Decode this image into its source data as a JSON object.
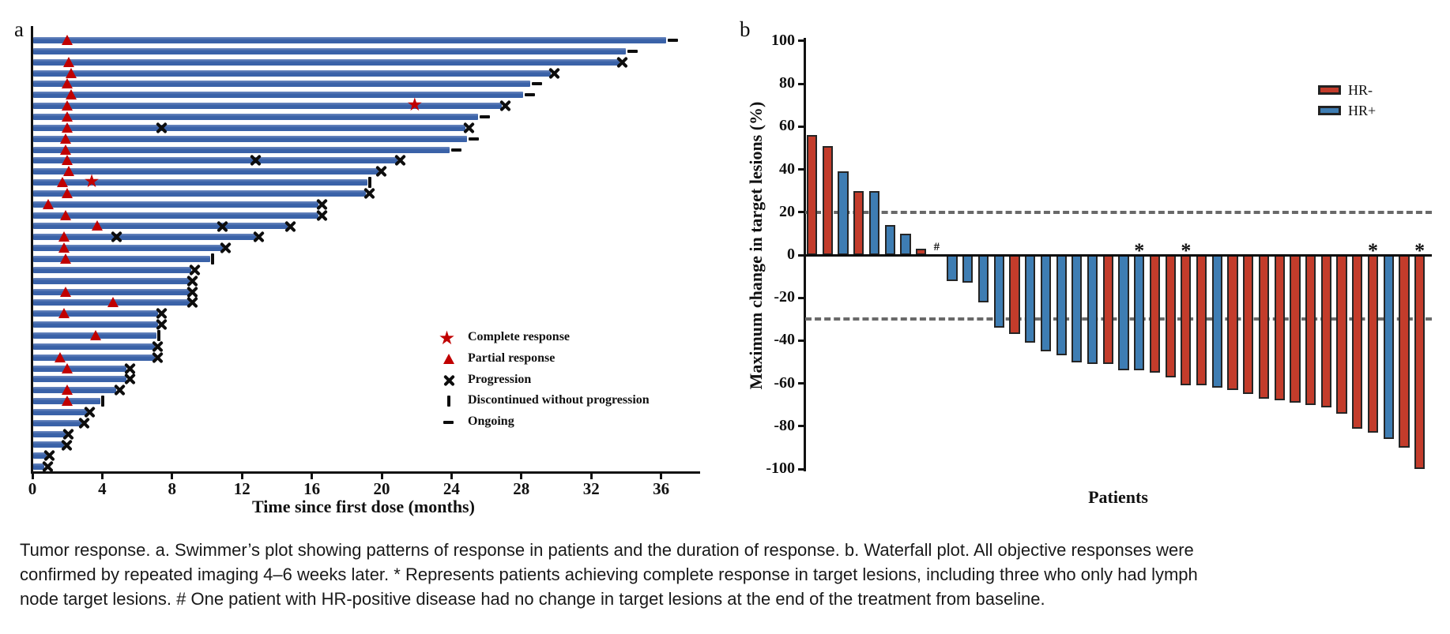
{
  "figure_title": "Tumor response",
  "panel_a": {
    "label": "a"
  },
  "panel_b": {
    "label": "b"
  },
  "chart_data": [
    {
      "type": "bar",
      "subtype": "swimmer-plot",
      "panel": "a",
      "xlabel": "Time since first dose (months)",
      "x_ticks": [
        0,
        4,
        8,
        12,
        16,
        20,
        24,
        28,
        32,
        36
      ],
      "xlim": [
        0,
        38.2
      ],
      "bar_color": "#3a62a8",
      "marker_color_red": "#c00000",
      "marker_color_black": "#0d0d0d",
      "legend": [
        {
          "type": "star",
          "label": "Complete response"
        },
        {
          "type": "triangle",
          "label": "Partial response"
        },
        {
          "type": "x",
          "label": "Progression"
        },
        {
          "type": "discontinued",
          "label": "Discontinued without progression"
        },
        {
          "type": "ongoing",
          "label": "Ongoing"
        }
      ],
      "patients": [
        {
          "end": 36.3,
          "pr": 2.0,
          "end_marker": "ongoing"
        },
        {
          "end": 34.0,
          "end_marker": "ongoing"
        },
        {
          "end": 33.6,
          "pr": 2.1,
          "end_marker": "progression"
        },
        {
          "end": 29.7,
          "pr": 2.2,
          "end_marker": "progression"
        },
        {
          "end": 28.5,
          "pr": 2.0,
          "end_marker": "ongoing"
        },
        {
          "end": 28.1,
          "pr": 2.2,
          "end_marker": "ongoing"
        },
        {
          "end": 26.9,
          "pr": 2.0,
          "cr": 22.0,
          "end_marker": "progression"
        },
        {
          "end": 25.5,
          "pr": 2.0,
          "end_marker": "ongoing"
        },
        {
          "end": 24.8,
          "pr": 2.0,
          "mid_x": [
            7.4
          ],
          "end_marker": "progression"
        },
        {
          "end": 24.9,
          "pr": 1.9,
          "end_marker": "ongoing"
        },
        {
          "end": 23.9,
          "pr": 1.9,
          "end_marker": "ongoing"
        },
        {
          "end": 20.9,
          "pr": 2.0,
          "mid_x": [
            12.8
          ],
          "end_marker": "progression"
        },
        {
          "end": 19.8,
          "pr": 2.1,
          "end_marker": "progression"
        },
        {
          "end": 19.2,
          "pr": 1.7,
          "cr": 3.5,
          "end_marker": "discontinued"
        },
        {
          "end": 19.1,
          "pr": 2.0,
          "end_marker": "progression"
        },
        {
          "end": 16.4,
          "pr": 0.9,
          "end_marker": "progression"
        },
        {
          "end": 16.4,
          "pr": 1.9,
          "end_marker": "progression"
        },
        {
          "end": 14.6,
          "pr": 3.7,
          "mid_x": [
            10.9
          ],
          "end_marker": "progression"
        },
        {
          "end": 12.8,
          "pr": 1.8,
          "mid_x": [
            4.8
          ],
          "end_marker": "progression"
        },
        {
          "end": 10.9,
          "pr": 1.8,
          "end_marker": "progression"
        },
        {
          "end": 10.2,
          "pr": 1.9,
          "end_marker": "discontinued"
        },
        {
          "end": 9.1,
          "end_marker": "progression"
        },
        {
          "end": 9.0,
          "end_marker": "progression"
        },
        {
          "end": 9.0,
          "pr": 1.9,
          "end_marker": "progression"
        },
        {
          "end": 9.0,
          "pr": 4.6,
          "end_marker": "progression"
        },
        {
          "end": 7.2,
          "pr": 1.8,
          "end_marker": "progression"
        },
        {
          "end": 7.2,
          "end_marker": "progression"
        },
        {
          "end": 7.1,
          "pr": 3.6,
          "end_marker": "discontinued"
        },
        {
          "end": 7.0,
          "end_marker": "progression"
        },
        {
          "end": 7.0,
          "pr": 1.6,
          "end_marker": "progression"
        },
        {
          "end": 5.4,
          "pr": 2.0,
          "end_marker": "progression"
        },
        {
          "end": 5.4,
          "end_marker": "progression"
        },
        {
          "end": 4.8,
          "pr": 2.0,
          "end_marker": "progression"
        },
        {
          "end": 3.9,
          "pr": 2.0,
          "end_marker": "discontinued"
        },
        {
          "end": 3.1,
          "end_marker": "progression"
        },
        {
          "end": 2.8,
          "end_marker": "progression"
        },
        {
          "end": 1.9,
          "end_marker": "progression"
        },
        {
          "end": 1.8,
          "end_marker": "progression"
        },
        {
          "end": 0.8,
          "end_marker": "progression"
        },
        {
          "end": 0.7,
          "end_marker": "progression"
        }
      ]
    },
    {
      "type": "bar",
      "subtype": "waterfall-plot",
      "panel": "b",
      "ylabel": "Maximum change in target lesions (%)",
      "xlabel": "Patients",
      "y_ticks": [
        100,
        80,
        60,
        40,
        20,
        0,
        -20,
        -40,
        -60,
        -80,
        -100
      ],
      "ylim": [
        -100,
        100
      ],
      "reference_lines": [
        20,
        -30
      ],
      "legend": [
        {
          "label": "HR-",
          "color": "#c33c2b"
        },
        {
          "label": "HR+",
          "color": "#3e7db3"
        }
      ],
      "group_colors": {
        "HR-": "#c33c2b",
        "HR+": "#3e7db3"
      },
      "bars": [
        {
          "value": 56,
          "group": "HR-"
        },
        {
          "value": 51,
          "group": "HR-"
        },
        {
          "value": 39,
          "group": "HR+"
        },
        {
          "value": 30,
          "group": "HR-"
        },
        {
          "value": 30,
          "group": "HR+"
        },
        {
          "value": 14,
          "group": "HR+"
        },
        {
          "value": 10,
          "group": "HR+"
        },
        {
          "value": 3,
          "group": "HR-"
        },
        {
          "value": 0,
          "group": "HR+",
          "annotation": "#"
        },
        {
          "value": -12,
          "group": "HR+"
        },
        {
          "value": -13,
          "group": "HR+"
        },
        {
          "value": -22,
          "group": "HR+"
        },
        {
          "value": -34,
          "group": "HR+"
        },
        {
          "value": -37,
          "group": "HR-"
        },
        {
          "value": -41,
          "group": "HR+"
        },
        {
          "value": -45,
          "group": "HR+"
        },
        {
          "value": -47,
          "group": "HR+"
        },
        {
          "value": -50,
          "group": "HR+"
        },
        {
          "value": -51,
          "group": "HR+"
        },
        {
          "value": -51,
          "group": "HR-"
        },
        {
          "value": -54,
          "group": "HR+"
        },
        {
          "value": -54,
          "group": "HR+",
          "annotation": "*"
        },
        {
          "value": -55,
          "group": "HR-"
        },
        {
          "value": -57,
          "group": "HR-"
        },
        {
          "value": -61,
          "group": "HR-",
          "annotation": "*"
        },
        {
          "value": -61,
          "group": "HR-"
        },
        {
          "value": -62,
          "group": "HR+"
        },
        {
          "value": -63,
          "group": "HR-"
        },
        {
          "value": -65,
          "group": "HR-"
        },
        {
          "value": -67,
          "group": "HR-"
        },
        {
          "value": -68,
          "group": "HR-"
        },
        {
          "value": -69,
          "group": "HR-"
        },
        {
          "value": -70,
          "group": "HR-"
        },
        {
          "value": -71,
          "group": "HR-"
        },
        {
          "value": -74,
          "group": "HR-"
        },
        {
          "value": -81,
          "group": "HR-"
        },
        {
          "value": -83,
          "group": "HR-",
          "annotation": "*"
        },
        {
          "value": -86,
          "group": "HR+"
        },
        {
          "value": -90,
          "group": "HR-"
        },
        {
          "value": -100,
          "group": "HR-",
          "annotation": "*"
        }
      ]
    }
  ],
  "caption": {
    "lines": [
      "Tumor response. a. Swimmer’s plot showing patterns of response in patients and the duration of response. b. Waterfall plot. All objective responses were",
      "confirmed by repeated imaging 4–6 weeks later. * Represents patients achieving complete response in target lesions, including three who only had lymph",
      "node target lesions. # One patient with HR-positive disease had no change in target lesions at the end of the treatment from baseline."
    ]
  }
}
